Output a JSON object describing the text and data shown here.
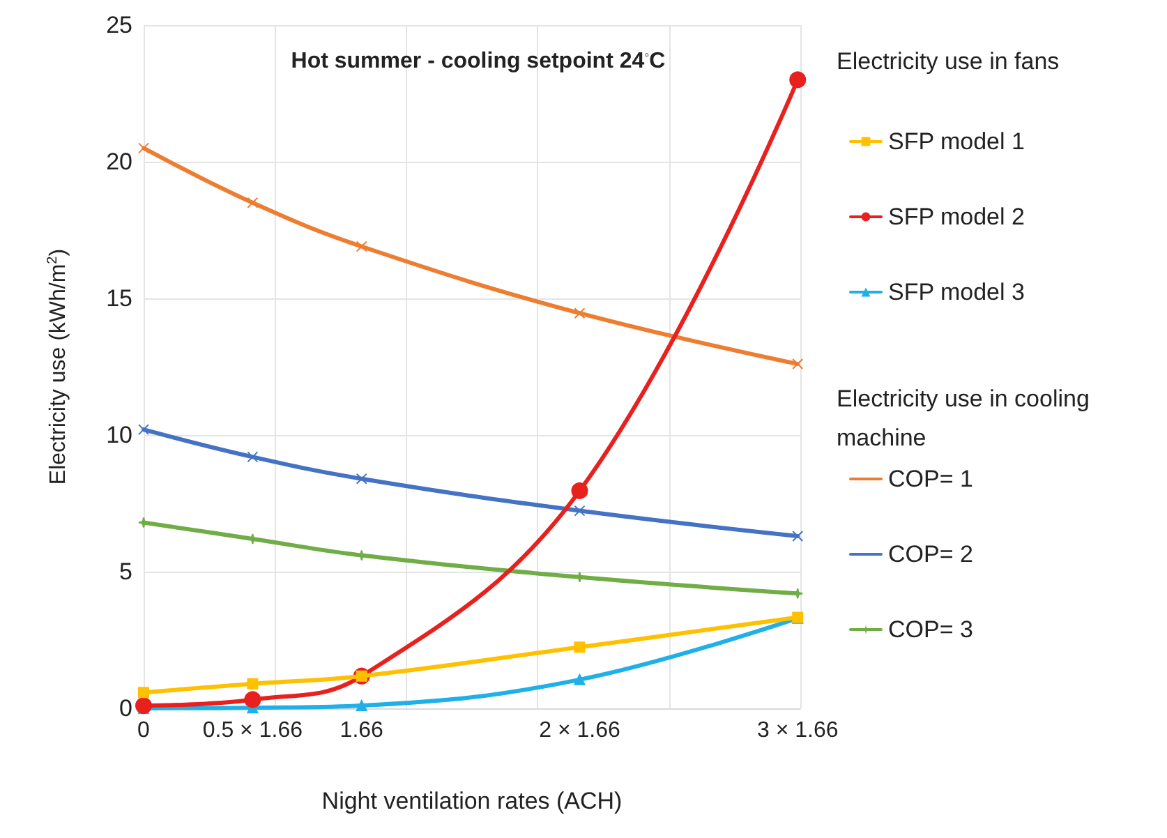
{
  "chart_data": {
    "type": "line",
    "title": "Hot summer - cooling setpoint 24$^{◦}$C",
    "xlabel": "Night ventilation rates (ACH)",
    "ylabel": "Electricity use (kWh/m$^{2}$)",
    "annotations": [
      "Electricity use in fans",
      "Electricity use in cooling machine"
    ],
    "x": [
      0,
      0.83,
      1.66,
      3.32,
      4.98
    ],
    "series": [
      {
        "name": "SFP model 1",
        "color": "#ffc000",
        "marker": "square",
        "values": [
          0.58,
          0.9,
          1.18,
          2.24,
          3.33
        ]
      },
      {
        "name": "SFP model 2",
        "color": "#e8201e",
        "marker": "circle",
        "values": [
          0.1,
          0.32,
          1.18,
          7.96,
          23.0
        ]
      },
      {
        "name": "SFP model 3",
        "color": "#1fb0e8",
        "marker": "triangle",
        "values": [
          0.0,
          0.02,
          0.1,
          1.05,
          3.3
        ]
      },
      {
        "name": "COP= 1",
        "color": "#ed7d31",
        "marker": "cross",
        "values": [
          20.5,
          18.5,
          16.9,
          14.46,
          12.6
        ]
      },
      {
        "name": "COP= 2",
        "color": "#4472c4",
        "marker": "cross",
        "values": [
          10.2,
          9.2,
          8.4,
          7.23,
          6.3
        ]
      },
      {
        "name": "COP= 3",
        "color": "#70ad47",
        "marker": "star",
        "values": [
          6.8,
          6.2,
          5.6,
          4.8,
          4.2
        ]
      }
    ],
    "xlim": [
      0,
      5
    ],
    "xticks": [
      {
        "value": 0,
        "label": "0"
      },
      {
        "value": 0.83,
        "label": "0.5 × 1.66"
      },
      {
        "value": 1,
        "label": null
      },
      {
        "value": 1.66,
        "label": "1.66"
      },
      {
        "value": 2,
        "label": null
      },
      {
        "value": 3,
        "label": null
      },
      {
        "value": 3.32,
        "label": "2 × 1.66"
      },
      {
        "value": 4,
        "label": null
      },
      {
        "value": 4.98,
        "label": "3 × 1.66"
      },
      {
        "value": 5,
        "label": null
      }
    ],
    "ylim": [
      0,
      25
    ],
    "yticks": [
      0,
      5,
      10,
      15,
      20,
      25
    ],
    "grid": true,
    "legend": "right",
    "line_style": "solid"
  }
}
